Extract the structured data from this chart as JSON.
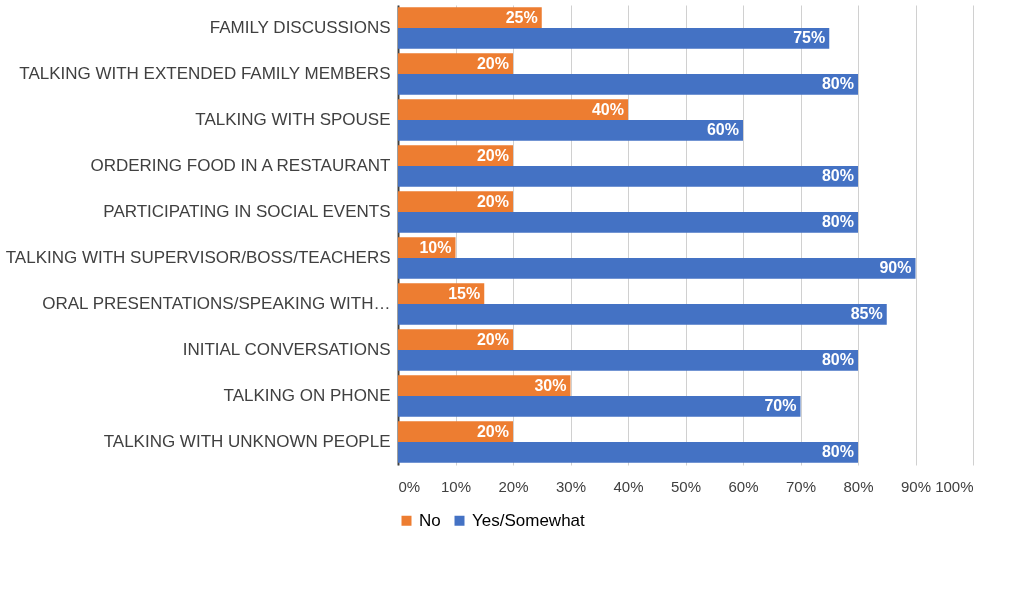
{
  "chart_data": {
    "type": "bar",
    "orientation": "horizontal",
    "categories": [
      "FAMILY DISCUSSIONS",
      "TALKING WITH EXTENDED FAMILY MEMBERS",
      "TALKING WITH SPOUSE",
      "ORDERING FOOD IN A RESTAURANT",
      "PARTICIPATING IN SOCIAL EVENTS",
      "TALKING WITH SUPERVISOR/BOSS/TEACHERS",
      "ORAL PRESENTATIONS/SPEAKING WITH…",
      "INITIAL CONVERSATIONS",
      "TALKING ON PHONE",
      "TALKING WITH UNKNOWN PEOPLE"
    ],
    "series": [
      {
        "name": "No",
        "color": "#ed7d31",
        "values": [
          25,
          20,
          40,
          20,
          20,
          10,
          15,
          20,
          30,
          20
        ],
        "value_labels": [
          "25%",
          "20%",
          "40%",
          "20%",
          "20%",
          "10%",
          "15%",
          "20%",
          "30%",
          "20%"
        ]
      },
      {
        "name": "Yes/Somewhat",
        "color": "#4472c4",
        "values": [
          75,
          80,
          60,
          80,
          80,
          90,
          85,
          80,
          70,
          80
        ],
        "value_labels": [
          "75%",
          "80%",
          "60%",
          "80%",
          "80%",
          "90%",
          "85%",
          "80%",
          "70%",
          "80%"
        ]
      }
    ],
    "xlim": [
      0,
      100
    ],
    "xticks": [
      {
        "value": 0,
        "label": "0%"
      },
      {
        "value": 10,
        "label": "10%"
      },
      {
        "value": 20,
        "label": "20%"
      },
      {
        "value": 30,
        "label": "30%"
      },
      {
        "value": 40,
        "label": "40%"
      },
      {
        "value": 50,
        "label": "50%"
      },
      {
        "value": 60,
        "label": "60%"
      },
      {
        "value": 70,
        "label": "70%"
      },
      {
        "value": 80,
        "label": "80%"
      },
      {
        "value": 90,
        "label": "90%"
      },
      {
        "value": 100,
        "label": "100%"
      }
    ],
    "grid": "x",
    "legend": "bottom"
  }
}
